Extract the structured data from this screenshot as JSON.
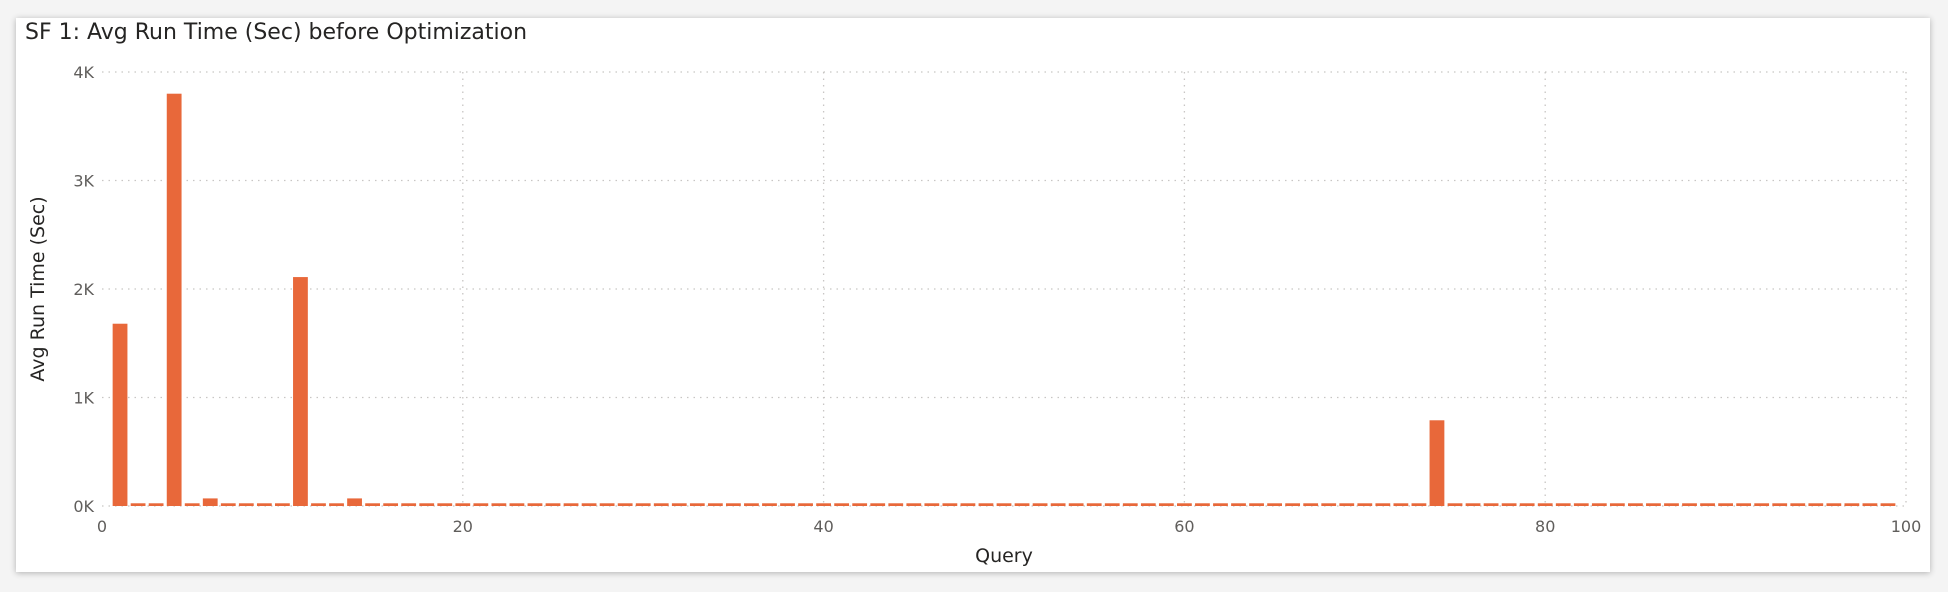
{
  "chart_data": {
    "type": "bar",
    "title": "SF 1: Avg Run Time (Sec) before Optimization",
    "xlabel": "Query",
    "ylabel": "Avg Run Time (Sec)",
    "xlim": [
      0,
      100
    ],
    "ylim": [
      0,
      4000
    ],
    "x_ticks": [
      0,
      20,
      40,
      60,
      80,
      100
    ],
    "x_tick_labels": [
      "0",
      "20",
      "40",
      "60",
      "80",
      "100"
    ],
    "y_ticks": [
      0,
      1000,
      2000,
      3000,
      4000
    ],
    "y_tick_labels": [
      "0K",
      "1K",
      "2K",
      "3K",
      "4K"
    ],
    "grid": true,
    "bar_color": "#e8683a",
    "x": [
      1,
      2,
      3,
      4,
      5,
      6,
      7,
      8,
      9,
      10,
      11,
      12,
      13,
      14,
      15,
      16,
      17,
      18,
      19,
      20,
      21,
      22,
      23,
      24,
      25,
      26,
      27,
      28,
      29,
      30,
      31,
      32,
      33,
      34,
      35,
      36,
      37,
      38,
      39,
      40,
      41,
      42,
      43,
      44,
      45,
      46,
      47,
      48,
      49,
      50,
      51,
      52,
      53,
      54,
      55,
      56,
      57,
      58,
      59,
      60,
      61,
      62,
      63,
      64,
      65,
      66,
      67,
      68,
      69,
      70,
      71,
      72,
      73,
      74,
      75,
      76,
      77,
      78,
      79,
      80,
      81,
      82,
      83,
      84,
      85,
      86,
      87,
      88,
      89,
      90,
      91,
      92,
      93,
      94,
      95,
      96,
      97,
      98,
      99
    ],
    "values": [
      1680,
      25,
      25,
      3800,
      25,
      70,
      25,
      25,
      25,
      25,
      2110,
      25,
      25,
      70,
      25,
      25,
      25,
      25,
      25,
      25,
      25,
      25,
      25,
      25,
      25,
      25,
      25,
      25,
      25,
      25,
      25,
      25,
      25,
      25,
      25,
      25,
      25,
      25,
      25,
      25,
      25,
      25,
      25,
      25,
      25,
      25,
      25,
      25,
      25,
      25,
      25,
      25,
      25,
      25,
      25,
      25,
      25,
      25,
      25,
      25,
      25,
      25,
      25,
      25,
      25,
      25,
      25,
      25,
      25,
      25,
      25,
      25,
      25,
      790,
      25,
      25,
      25,
      25,
      25,
      25,
      25,
      25,
      25,
      25,
      25,
      25,
      25,
      25,
      25,
      25,
      25,
      25,
      25,
      25,
      25,
      25,
      25,
      25,
      25
    ]
  }
}
